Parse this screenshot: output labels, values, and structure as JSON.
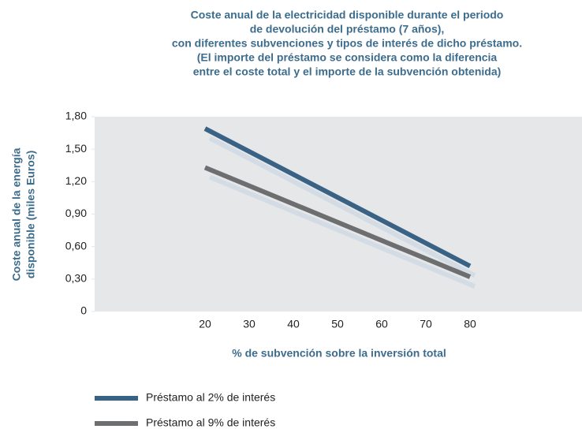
{
  "chart_data": {
    "type": "line",
    "title": [
      "Coste anual de la electricidad disponible durante el periodo",
      "de devolución del préstamo (7 años),",
      "con diferentes subvenciones y tipos de interés de dicho préstamo.",
      "(El importe del préstamo se considera como la diferencia",
      "entre el coste total y el importe de la subvención obtenida)"
    ],
    "ylabel": [
      "Coste anual de la energía",
      "disponible (miles Euros)"
    ],
    "xlabel": "% de subvención sobre la inversión total",
    "x": [
      20,
      80
    ],
    "series": [
      {
        "name": "Préstamo al 2% de interés",
        "color": "#3a6285",
        "values": [
          1.69,
          0.42
        ]
      },
      {
        "name": "Préstamo al 9% de interés",
        "color": "#6d6e70",
        "values": [
          1.33,
          0.32
        ]
      }
    ],
    "xlim": [
      -5,
      105
    ],
    "xticks": [
      20,
      30,
      40,
      50,
      60,
      70,
      80
    ],
    "ylim": [
      0,
      1.8
    ],
    "yticks": [
      0,
      {
        "value": 0.3,
        "label": "0,30"
      },
      {
        "value": 0.6,
        "label": "0,60"
      },
      {
        "value": 0.9,
        "label": "0,90"
      },
      {
        "value": 1.2,
        "label": "1,20"
      },
      {
        "value": 1.5,
        "label": "1,50"
      },
      {
        "value": 1.8,
        "label": "1,80"
      }
    ]
  }
}
